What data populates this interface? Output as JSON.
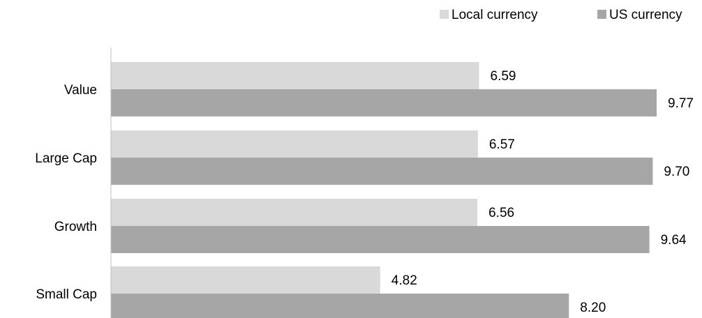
{
  "chart_data": {
    "type": "bar",
    "orientation": "horizontal",
    "categories": [
      "Value",
      "Large Cap",
      "Growth",
      "Small Cap"
    ],
    "series": [
      {
        "name": "Local currency",
        "values": [
          6.59,
          6.57,
          6.56,
          4.82
        ],
        "labels": [
          "6.59",
          "6.57",
          "6.56",
          "4.82"
        ],
        "color": "#d9d9d9"
      },
      {
        "name": "US currency",
        "values": [
          9.77,
          9.7,
          9.64,
          8.2
        ],
        "labels": [
          "9.77",
          "9.70",
          "9.64",
          "8.20"
        ],
        "color": "#a6a6a6"
      }
    ],
    "xlim": [
      0,
      10
    ],
    "data_labels": true,
    "grid": false,
    "legend_position": "top-right",
    "title": "",
    "xlabel": "",
    "ylabel": ""
  }
}
